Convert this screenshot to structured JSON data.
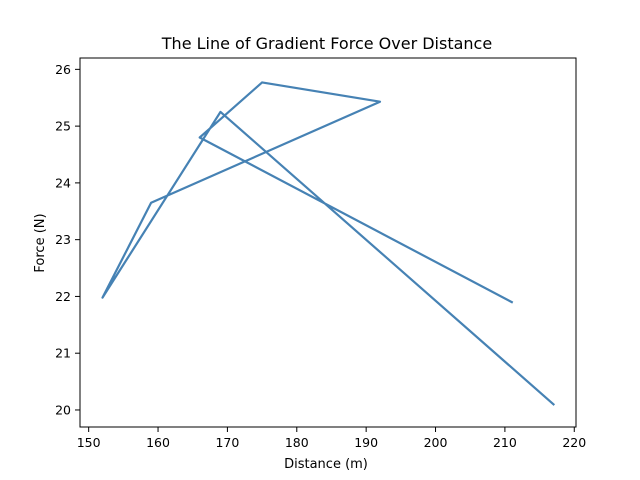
{
  "chart_data": {
    "type": "line",
    "title": "The Line of Gradient Force Over Distance",
    "xlabel": "Distance (m)",
    "ylabel": "Force (N)",
    "xlim": [
      148.75,
      220.25
    ],
    "ylim": [
      19.7,
      26.2
    ],
    "xticks": [
      150,
      160,
      170,
      180,
      190,
      200,
      210,
      220
    ],
    "yticks": [
      20,
      21,
      22,
      23,
      24,
      25,
      26
    ],
    "grid": false,
    "legend": "none",
    "series": [
      {
        "color": "#4682b4",
        "x": [
          211,
          166,
          175,
          192,
          159,
          152,
          169,
          217
        ],
        "y": [
          21.9,
          24.8,
          25.77,
          25.43,
          23.65,
          21.98,
          25.25,
          20.1
        ]
      }
    ]
  }
}
